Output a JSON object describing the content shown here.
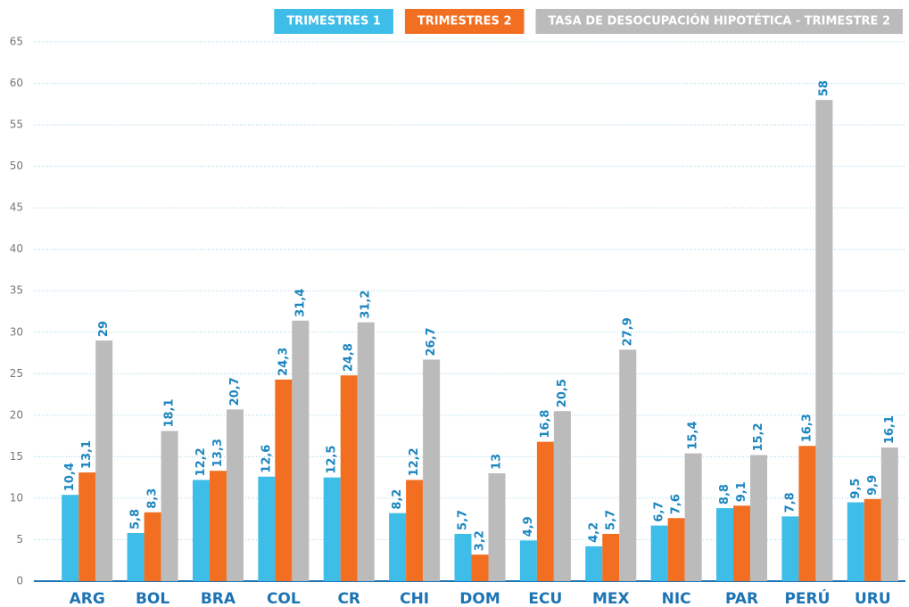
{
  "chart_data": {
    "type": "bar",
    "categories": [
      "ARG",
      "BOL",
      "BRA",
      "COL",
      "CR",
      "CHI",
      "DOM",
      "ECU",
      "MEX",
      "NIC",
      "PAR",
      "PERÚ",
      "URU"
    ],
    "series": [
      {
        "name": "TRIMESTRES 1",
        "color": "#3dbde8",
        "values": [
          10.4,
          5.8,
          12.2,
          12.6,
          12.5,
          8.2,
          5.7,
          4.9,
          4.2,
          6.7,
          8.8,
          7.8,
          9.5
        ],
        "value_labels": [
          "10,4",
          "5,8",
          "12,2",
          "12,6",
          "12,5",
          "8,2",
          "5,7",
          "4,9",
          "4,2",
          "6,7",
          "8,8",
          "7,8",
          "9,5"
        ]
      },
      {
        "name": "TRIMESTRES 2",
        "color": "#f26f21",
        "values": [
          13.1,
          8.3,
          13.3,
          24.3,
          24.8,
          12.2,
          3.2,
          16.8,
          5.7,
          7.6,
          9.1,
          16.3,
          9.9
        ],
        "value_labels": [
          "13,1",
          "8,3",
          "13,3",
          "24,3",
          "24,8",
          "12,2",
          "3,2",
          "16,8",
          "5,7",
          "7,6",
          "9,1",
          "16,3",
          "9,9"
        ]
      },
      {
        "name": "TASA DE DESOCUPACIÓN HIPOTÉTICA - TRIMESTRE 2",
        "color": "#bbbbbb",
        "values": [
          29,
          18.1,
          20.7,
          31.4,
          31.2,
          26.7,
          13,
          20.5,
          27.9,
          15.4,
          15.2,
          58,
          16.1
        ],
        "value_labels": [
          "29",
          "18,1",
          "20,7",
          "31,4",
          "31,2",
          "26,7",
          "13",
          "20,5",
          "27,9",
          "15,4",
          "15,2",
          "58",
          "16,1"
        ]
      }
    ],
    "ylim": [
      0,
      65
    ],
    "yticks": [
      0,
      5,
      10,
      15,
      20,
      25,
      30,
      35,
      40,
      45,
      50,
      55,
      60,
      65
    ],
    "grid": true,
    "legend": "top-right"
  }
}
